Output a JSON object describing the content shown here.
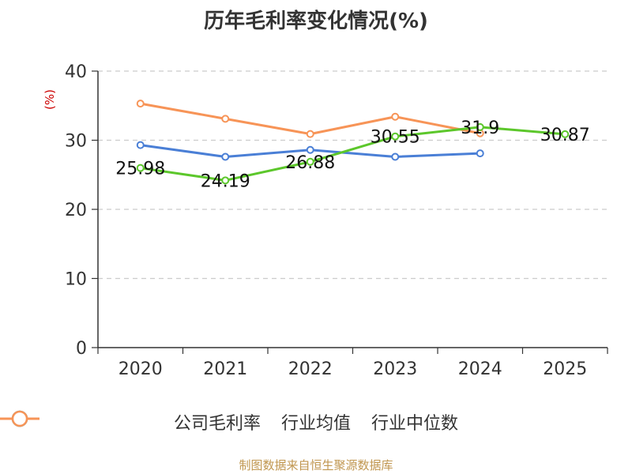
{
  "chart_data": {
    "type": "line",
    "title": "历年毛利率变化情况(%)",
    "ylabel": "(%)",
    "xlabel": "",
    "categories": [
      "2020",
      "2021",
      "2022",
      "2023",
      "2024",
      "2025"
    ],
    "ylim": [
      0,
      40
    ],
    "yticks": [
      0,
      10,
      20,
      30,
      40
    ],
    "grid": true,
    "legend_position": "bottom",
    "series": [
      {
        "name": "公司毛利率",
        "color": "#5cc72b",
        "values": [
          25.98,
          24.19,
          26.88,
          30.55,
          31.9,
          30.87
        ],
        "labels": [
          "25.98",
          "24.19",
          "26.88",
          "30.55",
          "31.9",
          "30.87"
        ]
      },
      {
        "name": "行业均值",
        "color": "#4a7fd6",
        "values": [
          29.3,
          27.6,
          28.6,
          27.6,
          28.1,
          null
        ],
        "labels": []
      },
      {
        "name": "行业中位数",
        "color": "#f79457",
        "values": [
          35.3,
          33.1,
          30.9,
          33.4,
          31.0,
          null
        ],
        "labels": []
      }
    ]
  },
  "source": "制图数据来自恒生聚源数据库"
}
